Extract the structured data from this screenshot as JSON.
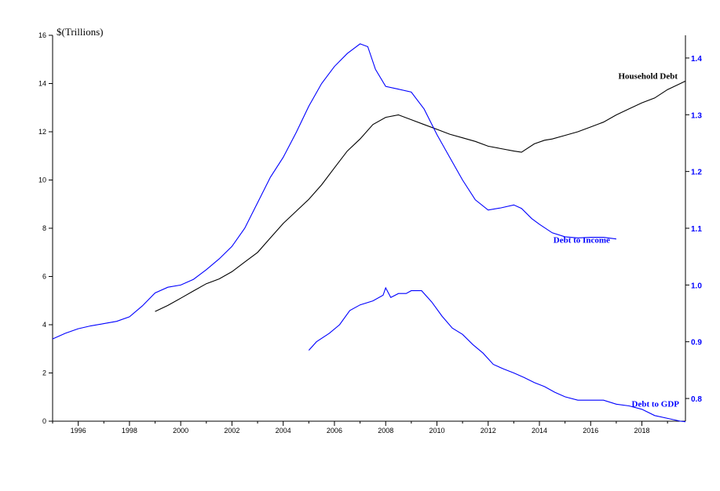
{
  "chart_data": {
    "type": "line",
    "left_axis": {
      "unit_label": "$(Trillions)",
      "ylim": [
        0,
        16
      ],
      "ticks": [
        0,
        2,
        4,
        6,
        8,
        10,
        12,
        14,
        16
      ]
    },
    "right_axis": {
      "ylim": [
        0.76,
        1.44
      ],
      "ticks": [
        0.8,
        0.9,
        1.0,
        1.1,
        1.2,
        1.3,
        1.4
      ],
      "tick_labels": [
        "0.8",
        "0.9",
        "1.0",
        "1.1",
        "1.2",
        "1.3",
        "1.4"
      ],
      "color": "#0000ff"
    },
    "x_axis": {
      "xlim": [
        1995,
        2019.7
      ],
      "ticks": [
        1996,
        1998,
        2000,
        2002,
        2004,
        2006,
        2008,
        2010,
        2012,
        2014,
        2016,
        2018
      ]
    },
    "grid": false,
    "series": [
      {
        "name": "Household Debt",
        "axis": "left",
        "color": "#000000",
        "points": [
          [
            1999,
            4.55
          ],
          [
            1999.5,
            4.8
          ],
          [
            2000,
            5.1
          ],
          [
            2000.5,
            5.4
          ],
          [
            2001,
            5.7
          ],
          [
            2001.5,
            5.9
          ],
          [
            2002,
            6.2
          ],
          [
            2002.5,
            6.6
          ],
          [
            2003,
            7.0
          ],
          [
            2003.5,
            7.6
          ],
          [
            2004,
            8.2
          ],
          [
            2004.5,
            8.7
          ],
          [
            2005,
            9.2
          ],
          [
            2005.5,
            9.8
          ],
          [
            2006,
            10.5
          ],
          [
            2006.5,
            11.2
          ],
          [
            2007,
            11.7
          ],
          [
            2007.5,
            12.3
          ],
          [
            2008,
            12.6
          ],
          [
            2008.5,
            12.7
          ],
          [
            2009,
            12.5
          ],
          [
            2009.5,
            12.3
          ],
          [
            2010,
            12.1
          ],
          [
            2010.5,
            11.9
          ],
          [
            2011,
            11.75
          ],
          [
            2011.5,
            11.6
          ],
          [
            2012,
            11.4
          ],
          [
            2012.5,
            11.3
          ],
          [
            2013,
            11.2
          ],
          [
            2013.3,
            11.15
          ],
          [
            2013.8,
            11.5
          ],
          [
            2014.2,
            11.65
          ],
          [
            2014.5,
            11.7
          ],
          [
            2015,
            11.85
          ],
          [
            2015.5,
            12.0
          ],
          [
            2016,
            12.2
          ],
          [
            2016.5,
            12.4
          ],
          [
            2017,
            12.7
          ],
          [
            2017.5,
            12.95
          ],
          [
            2018,
            13.2
          ],
          [
            2018.5,
            13.4
          ],
          [
            2019,
            13.75
          ],
          [
            2019.5,
            14.0
          ],
          [
            2019.7,
            14.1
          ]
        ]
      },
      {
        "name": "Debt to Income",
        "axis": "right",
        "color": "#0000ff",
        "points": [
          [
            1995,
            0.905
          ],
          [
            1995.5,
            0.915
          ],
          [
            1996,
            0.923
          ],
          [
            1996.5,
            0.928
          ],
          [
            1997,
            0.932
          ],
          [
            1997.5,
            0.936
          ],
          [
            1998,
            0.944
          ],
          [
            1998.5,
            0.963
          ],
          [
            1999,
            0.986
          ],
          [
            1999.5,
            0.996
          ],
          [
            2000,
            1.0
          ],
          [
            2000.5,
            1.01
          ],
          [
            2001,
            1.027
          ],
          [
            2001.5,
            1.046
          ],
          [
            2002,
            1.068
          ],
          [
            2002.5,
            1.1
          ],
          [
            2003,
            1.145
          ],
          [
            2003.5,
            1.19
          ],
          [
            2004,
            1.225
          ],
          [
            2004.5,
            1.268
          ],
          [
            2005,
            1.315
          ],
          [
            2005.5,
            1.355
          ],
          [
            2006,
            1.385
          ],
          [
            2006.5,
            1.408
          ],
          [
            2007,
            1.425
          ],
          [
            2007.3,
            1.42
          ],
          [
            2007.6,
            1.38
          ],
          [
            2008,
            1.35
          ],
          [
            2008.5,
            1.345
          ],
          [
            2009,
            1.34
          ],
          [
            2009.5,
            1.31
          ],
          [
            2010,
            1.265
          ],
          [
            2010.5,
            1.225
          ],
          [
            2011,
            1.185
          ],
          [
            2011.5,
            1.15
          ],
          [
            2012,
            1.132
          ],
          [
            2012.5,
            1.136
          ],
          [
            2013,
            1.141
          ],
          [
            2013.3,
            1.135
          ],
          [
            2013.7,
            1.117
          ],
          [
            2014,
            1.107
          ],
          [
            2014.5,
            1.092
          ],
          [
            2015,
            1.085
          ],
          [
            2015.5,
            1.083
          ],
          [
            2016,
            1.084
          ],
          [
            2016.5,
            1.084
          ],
          [
            2017,
            1.081
          ]
        ]
      },
      {
        "name": "Debt to GDP",
        "axis": "right",
        "color": "#0000ff",
        "points": [
          [
            2005,
            0.885
          ],
          [
            2005.3,
            0.9
          ],
          [
            2005.8,
            0.915
          ],
          [
            2006.2,
            0.93
          ],
          [
            2006.6,
            0.955
          ],
          [
            2007,
            0.965
          ],
          [
            2007.5,
            0.972
          ],
          [
            2007.9,
            0.982
          ],
          [
            2008,
            0.995
          ],
          [
            2008.2,
            0.978
          ],
          [
            2008.5,
            0.985
          ],
          [
            2008.8,
            0.985
          ],
          [
            2009,
            0.99
          ],
          [
            2009.4,
            0.99
          ],
          [
            2009.8,
            0.97
          ],
          [
            2010.2,
            0.945
          ],
          [
            2010.6,
            0.924
          ],
          [
            2011,
            0.913
          ],
          [
            2011.4,
            0.895
          ],
          [
            2011.8,
            0.88
          ],
          [
            2012.2,
            0.86
          ],
          [
            2012.6,
            0.852
          ],
          [
            2013,
            0.845
          ],
          [
            2013.4,
            0.837
          ],
          [
            2013.8,
            0.828
          ],
          [
            2014.2,
            0.821
          ],
          [
            2014.6,
            0.811
          ],
          [
            2015,
            0.803
          ],
          [
            2015.5,
            0.797
          ],
          [
            2016,
            0.797
          ],
          [
            2016.5,
            0.797
          ],
          [
            2017,
            0.79
          ],
          [
            2017.5,
            0.787
          ],
          [
            2018,
            0.781
          ],
          [
            2018.5,
            0.77
          ],
          [
            2019,
            0.765
          ],
          [
            2019.5,
            0.76
          ],
          [
            2019.7,
            0.759
          ]
        ]
      }
    ]
  }
}
